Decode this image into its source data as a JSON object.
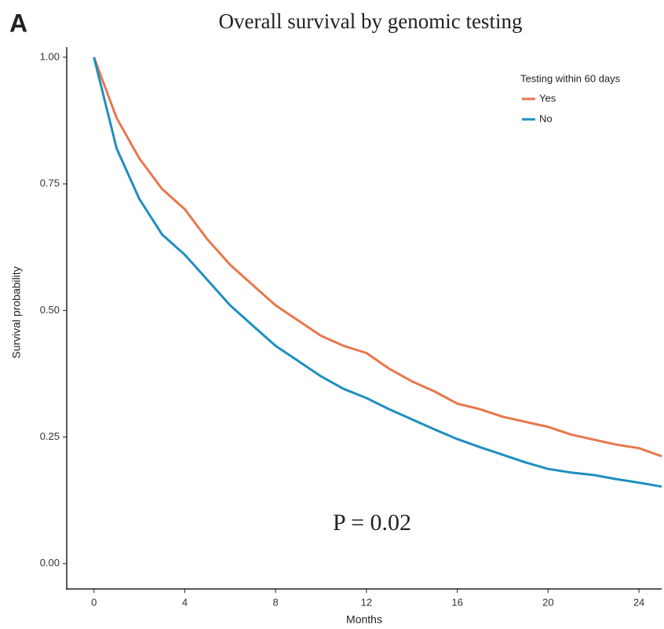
{
  "chart_data": {
    "type": "line",
    "panel_label": "A",
    "title": "Overall survival by genomic testing",
    "x_label": "Months",
    "y_label": "Survival probability",
    "legend_title": "Testing within 60 days",
    "annotation": "P = 0.02",
    "x": [
      0,
      1,
      2,
      3,
      4,
      5,
      6,
      7,
      8,
      9,
      10,
      11,
      12,
      13,
      14,
      15,
      16,
      17,
      18,
      19,
      20,
      21,
      22,
      23,
      24,
      25
    ],
    "series": [
      {
        "name": "Yes",
        "color": "#e8774d",
        "values": [
          1.0,
          0.88,
          0.8,
          0.74,
          0.7,
          0.64,
          0.59,
          0.55,
          0.51,
          0.48,
          0.45,
          0.43,
          0.416,
          0.385,
          0.36,
          0.34,
          0.316,
          0.305,
          0.29,
          0.28,
          0.27,
          0.255,
          0.245,
          0.235,
          0.228,
          0.212
        ]
      },
      {
        "name": "No",
        "color": "#1f8fbf",
        "values": [
          1.0,
          0.82,
          0.72,
          0.65,
          0.61,
          0.56,
          0.51,
          0.47,
          0.43,
          0.4,
          0.37,
          0.345,
          0.327,
          0.305,
          0.285,
          0.265,
          0.246,
          0.23,
          0.215,
          0.2,
          0.187,
          0.18,
          0.175,
          0.167,
          0.16,
          0.152
        ]
      }
    ],
    "xlim": [
      -1.2,
      25
    ],
    "ylim": [
      -0.05,
      1.02
    ],
    "xticks": [
      0,
      4,
      8,
      12,
      16,
      20,
      24
    ],
    "yticks": [
      {
        "value": 0,
        "label": "0.00"
      },
      {
        "value": 0.25,
        "label": "0.25"
      },
      {
        "value": 0.5,
        "label": "0.50"
      },
      {
        "value": 0.75,
        "label": "0.75"
      },
      {
        "value": 1,
        "label": "1.00"
      }
    ],
    "grid": false,
    "legend_position": "top-right"
  }
}
